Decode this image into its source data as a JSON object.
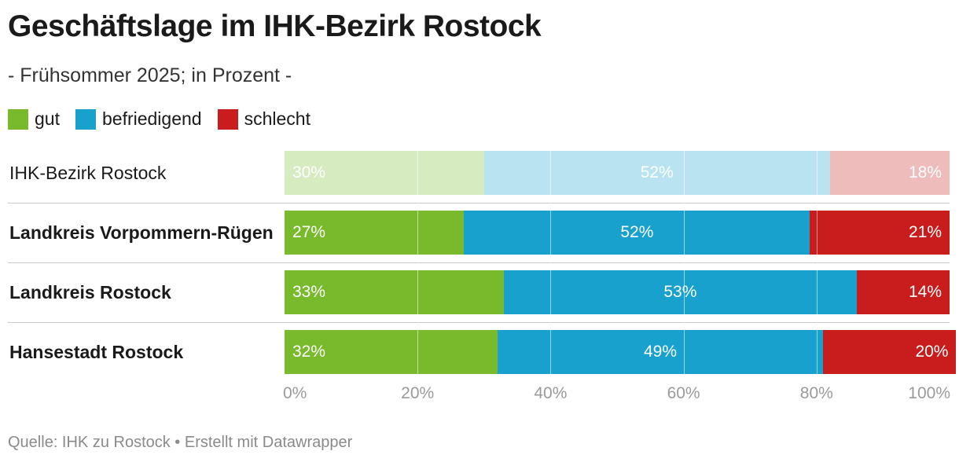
{
  "header": {
    "title": "Geschäftslage im IHK-Bezirk Rostock",
    "subtitle": "- Frühsommer 2025; in Prozent -"
  },
  "legend": [
    {
      "label": "gut",
      "color": "#78ba2c"
    },
    {
      "label": "befriedigend",
      "color": "#18a1cd"
    },
    {
      "label": "schlecht",
      "color": "#c91d1d"
    }
  ],
  "footer": {
    "source": "Quelle: IHK zu Rostock • Erstellt mit Datawrapper"
  },
  "chart_data": {
    "type": "bar",
    "orientation": "horizontal",
    "stacked": true,
    "categories": [
      "IHK-Bezirk Rostock",
      "Landkreis Vorpommern-Rügen",
      "Landkreis Rostock",
      "Hansestadt Rostock"
    ],
    "category_bold": [
      false,
      true,
      true,
      true
    ],
    "category_faded": [
      true,
      false,
      false,
      false
    ],
    "series": [
      {
        "name": "gut",
        "color": "#78ba2c",
        "values": [
          30,
          27,
          33,
          32
        ],
        "labels": [
          "30%",
          "27%",
          "33%",
          "32%"
        ]
      },
      {
        "name": "befriedigend",
        "color": "#18a1cd",
        "values": [
          52,
          52,
          53,
          49
        ],
        "labels": [
          "52%",
          "52%",
          "53%",
          "49%"
        ]
      },
      {
        "name": "schlecht",
        "color": "#c91d1d",
        "values": [
          18,
          21,
          14,
          20
        ],
        "labels": [
          "18%",
          "21%",
          "14%",
          "20%"
        ]
      }
    ],
    "faded_colors": [
      "#d6ebc0",
      "#bae3f1",
      "#efbcbc"
    ],
    "xlim": [
      0,
      100
    ],
    "xticks": [
      0,
      20,
      40,
      60,
      80,
      100
    ],
    "xtick_labels": [
      "0%",
      "20%",
      "40%",
      "60%",
      "80%",
      "100%"
    ],
    "grid": true,
    "legend_position": "top-left"
  }
}
